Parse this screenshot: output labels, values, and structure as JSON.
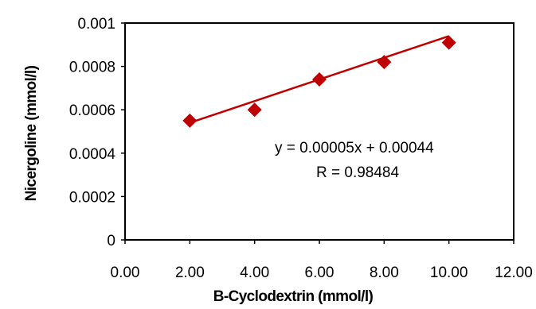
{
  "chart_data": {
    "type": "scatter",
    "title": "",
    "xlabel": "B-Cyclodextrin (mmol/l)",
    "ylabel": "Nicergoline (mmol/l)",
    "xlim": [
      0,
      12
    ],
    "ylim": [
      0,
      0.001
    ],
    "x_ticks": [
      "0.00",
      "2.00",
      "4.00",
      "6.00",
      "8.00",
      "10.00",
      "12.00"
    ],
    "y_ticks": [
      "0",
      "0.0002",
      "0.0004",
      "0.0006",
      "0.0008",
      "0.001"
    ],
    "x": [
      2,
      4,
      6,
      8,
      10
    ],
    "y": [
      0.00055,
      0.0006,
      0.00074,
      0.00082,
      0.00091
    ],
    "trendline": {
      "slope": 5e-05,
      "intercept": 0.00044
    },
    "equation": "y = 0.00005x + 0.00044",
    "r_label": "R  = 0.98484",
    "grid": false,
    "legend": "none",
    "series_color": "#c00000"
  }
}
